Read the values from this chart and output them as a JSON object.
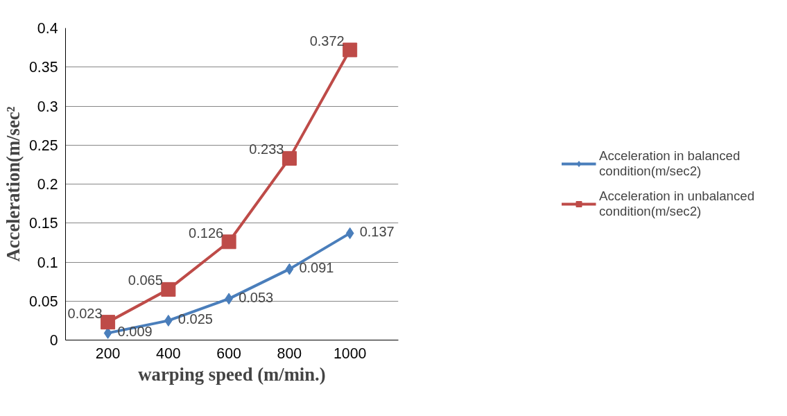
{
  "chart_data": {
    "type": "line",
    "xlabel": "warping speed (m/min.)",
    "ylabel": "Acceleration(m/sec²",
    "categories": [
      "200",
      "400",
      "600",
      "800",
      "1000"
    ],
    "series": [
      {
        "name": "Acceleration in balanced condition(m/sec2)",
        "color": "#4a7ebb",
        "marker": "diamond",
        "values": [
          0.009,
          0.025,
          0.053,
          0.091,
          0.137
        ]
      },
      {
        "name": "Acceleration in unbalanced condition(m/sec2)",
        "color": "#be4b48",
        "marker": "square",
        "values": [
          0.023,
          0.065,
          0.126,
          0.233,
          0.372
        ]
      }
    ],
    "ylim": [
      0,
      0.4
    ],
    "yticks": [
      0,
      0.05,
      0.1,
      0.15,
      0.2,
      0.25,
      0.3,
      0.35,
      0.4
    ],
    "grid": "y",
    "legend": "right",
    "data_labels": true,
    "line_style": "solid"
  }
}
